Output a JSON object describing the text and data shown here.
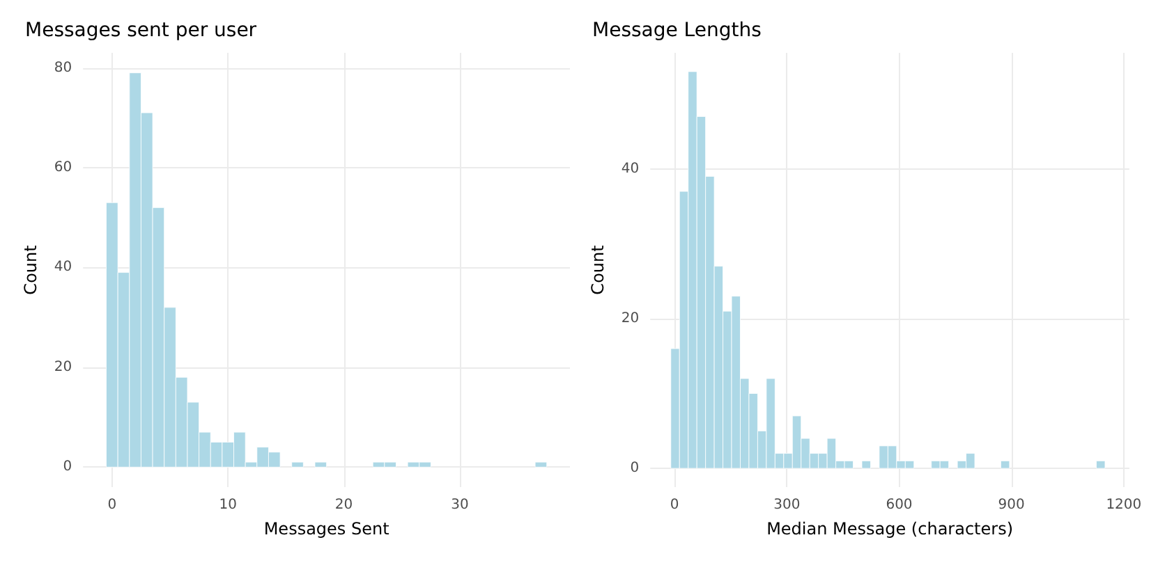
{
  "chart_data": [
    {
      "type": "histogram",
      "title": "Messages sent per user",
      "xlabel": "Messages Sent",
      "ylabel": "Count",
      "color": "#add8e6",
      "grid": true,
      "bins": [
        -0.5,
        0.5,
        1.5,
        2.5,
        3.5,
        4.5,
        5.5,
        6.5,
        7.5,
        8.5,
        9.5,
        10.5,
        11.5,
        12.5,
        13.5,
        14.5,
        15.5,
        16.5,
        17.5,
        18.5,
        19.5,
        20.5,
        21.5,
        22.5,
        23.5,
        24.5,
        25.5,
        26.5,
        27.5,
        28.5,
        29.5,
        30.5,
        31.5,
        32.5,
        33.5,
        34.5,
        35.5,
        36.5,
        37.5
      ],
      "values": [
        53,
        39,
        79,
        71,
        52,
        32,
        18,
        13,
        7,
        5,
        5,
        7,
        1,
        4,
        3,
        0,
        1,
        0,
        1,
        0,
        0,
        0,
        0,
        1,
        1,
        0,
        1,
        1,
        0,
        0,
        0,
        0,
        0,
        0,
        0,
        0,
        0,
        1
      ],
      "xlim": [
        -2.5,
        39.5
      ],
      "xticks": [
        0,
        10,
        20,
        30
      ],
      "ylim": [
        -4,
        83
      ],
      "yticks": [
        0,
        20,
        40,
        60,
        80
      ]
    },
    {
      "type": "histogram",
      "title": "Message Lengths",
      "xlabel": "Median Message (characters)",
      "ylabel": "Count",
      "color": "#add8e6",
      "grid": true,
      "bins": [
        -10,
        13.2,
        36.4,
        59.6,
        82.8,
        106,
        129.2,
        152.4,
        175.6,
        198.8,
        222,
        245.2,
        268.4,
        291.6,
        314.8,
        338,
        361.2,
        384.4,
        407.6,
        430.8,
        454,
        477.2,
        500.4,
        523.6,
        546.8,
        570,
        593.2,
        616.4,
        639.6,
        662.8,
        686,
        709.2,
        732.4,
        755.6,
        778.8,
        802,
        825.2,
        848.4,
        871.6,
        894.8,
        918,
        941.2,
        964.4,
        987.6,
        1010.8,
        1034,
        1057.2,
        1080.4,
        1103.6,
        1126.8,
        1150
      ],
      "values": [
        16,
        37,
        53,
        47,
        39,
        27,
        21,
        23,
        12,
        10,
        5,
        12,
        2,
        2,
        7,
        4,
        2,
        2,
        4,
        1,
        1,
        0,
        1,
        0,
        3,
        3,
        1,
        1,
        0,
        0,
        1,
        1,
        0,
        1,
        2,
        0,
        0,
        0,
        1,
        0,
        0,
        0,
        0,
        0,
        0,
        0,
        0,
        0,
        0,
        1
      ],
      "xlim": [
        -65,
        1215
      ],
      "xticks": [
        0,
        300,
        600,
        900,
        1200
      ],
      "ylim": [
        -2.5,
        55.5
      ],
      "yticks": [
        0,
        20,
        40
      ]
    }
  ]
}
